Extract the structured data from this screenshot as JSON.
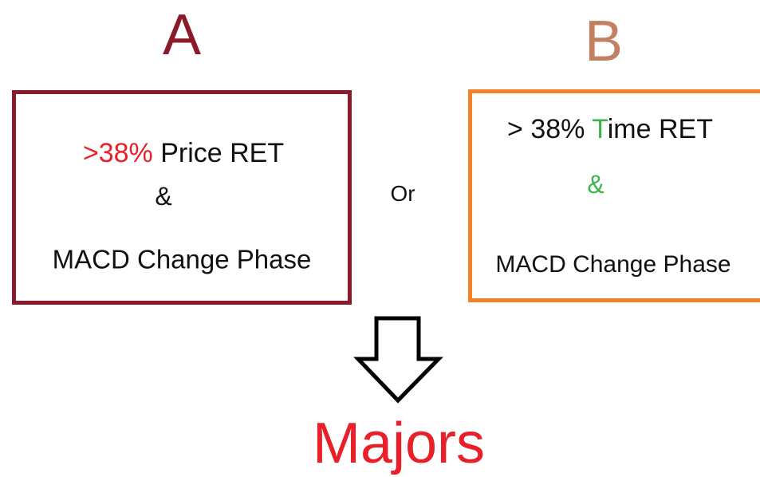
{
  "option_a": {
    "label": "A",
    "line1": [
      ">38%",
      " Price RET"
    ],
    "line2": "&",
    "line3": "MACD Change Phase"
  },
  "connector": "Or",
  "option_b": {
    "label": "B",
    "line1": [
      "> 38% ",
      "T",
      "ime RET"
    ],
    "line2": "&",
    "line3": "MACD Change Phase"
  },
  "result": "Majors"
}
